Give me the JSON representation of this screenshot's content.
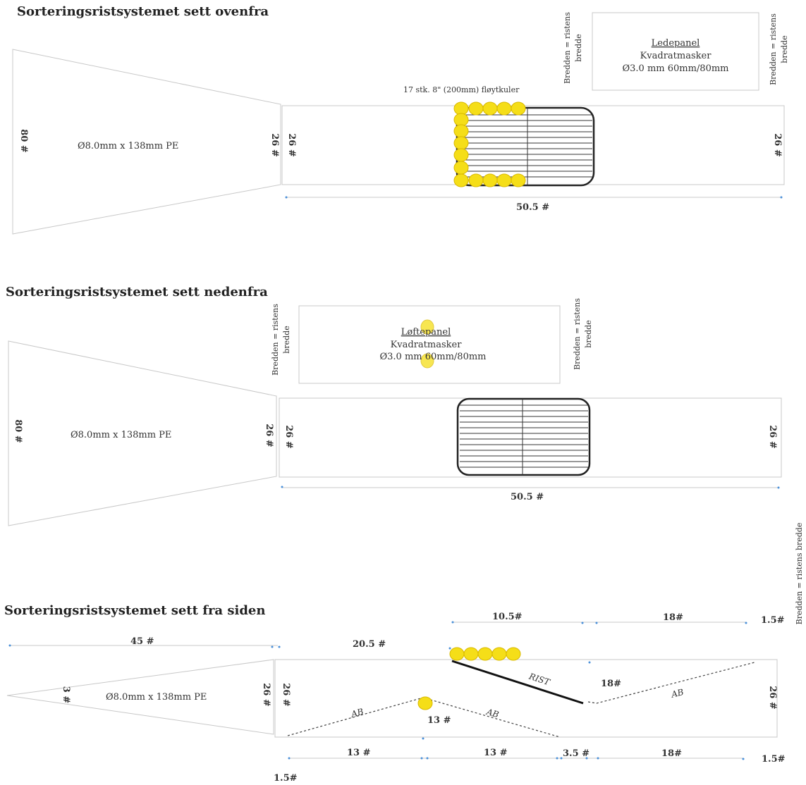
{
  "top_view": {
    "title": "Sorteringsristsystemet sett ovenfra",
    "mesh_label": "Ø8.0mm x 138mm PE",
    "left_count": "80 #",
    "mid_count": "26 #",
    "right_count_a": "26 #",
    "right_count_b": "26 #",
    "length": "50.5 #",
    "floats": "17 stk. 8\" (200mm) fløytkuler",
    "panel_title": "Ledepanel",
    "panel_l1": "Kvadratmasker",
    "panel_l2": "Ø3.0 mm 60mm/80mm",
    "width_note_l1": "Bredden = ristens",
    "width_note_l2": "bredde"
  },
  "bottom_view": {
    "title": "Sorteringsristsystemet sett nedenfra",
    "mesh_label": "Ø8.0mm x 138mm PE",
    "left_count": "80 #",
    "mid_count": "26 #",
    "right_count_a": "26 #",
    "right_count_b": "26 #",
    "length": "50.5 #",
    "panel_title": "Løftepanel",
    "panel_l1": "Kvadratmasker",
    "panel_l2": "Ø3.0 mm 60mm/80mm",
    "width_note_l1": "Bredden = ristens",
    "width_note_l2": "bredde"
  },
  "side_view": {
    "title": "Sorteringsristsystemet sett fra siden",
    "mesh_label": "Ø8.0mm x 138mm PE",
    "left_count": "3 #",
    "mid_count_a": "26 #",
    "mid_count_b": "26 #",
    "right_count": "26 #",
    "dim_45": "45 #",
    "dim_205": "20.5 #",
    "dim_105": "10.5#",
    "dim_18_top": "18#",
    "dim_15_top": "1.5#",
    "dim_18_mid": "18#",
    "dim_13_mid": "13 #",
    "dim_13_a": "13 #",
    "dim_13_b": "13 #",
    "dim_35": "3.5 #",
    "dim_18_bot": "18#",
    "dim_15_bot": "1.5#",
    "dim_15_left": "1.5#",
    "rist": "RIST",
    "ab": "AB",
    "width_note": "Bredden = ristens bredde"
  }
}
